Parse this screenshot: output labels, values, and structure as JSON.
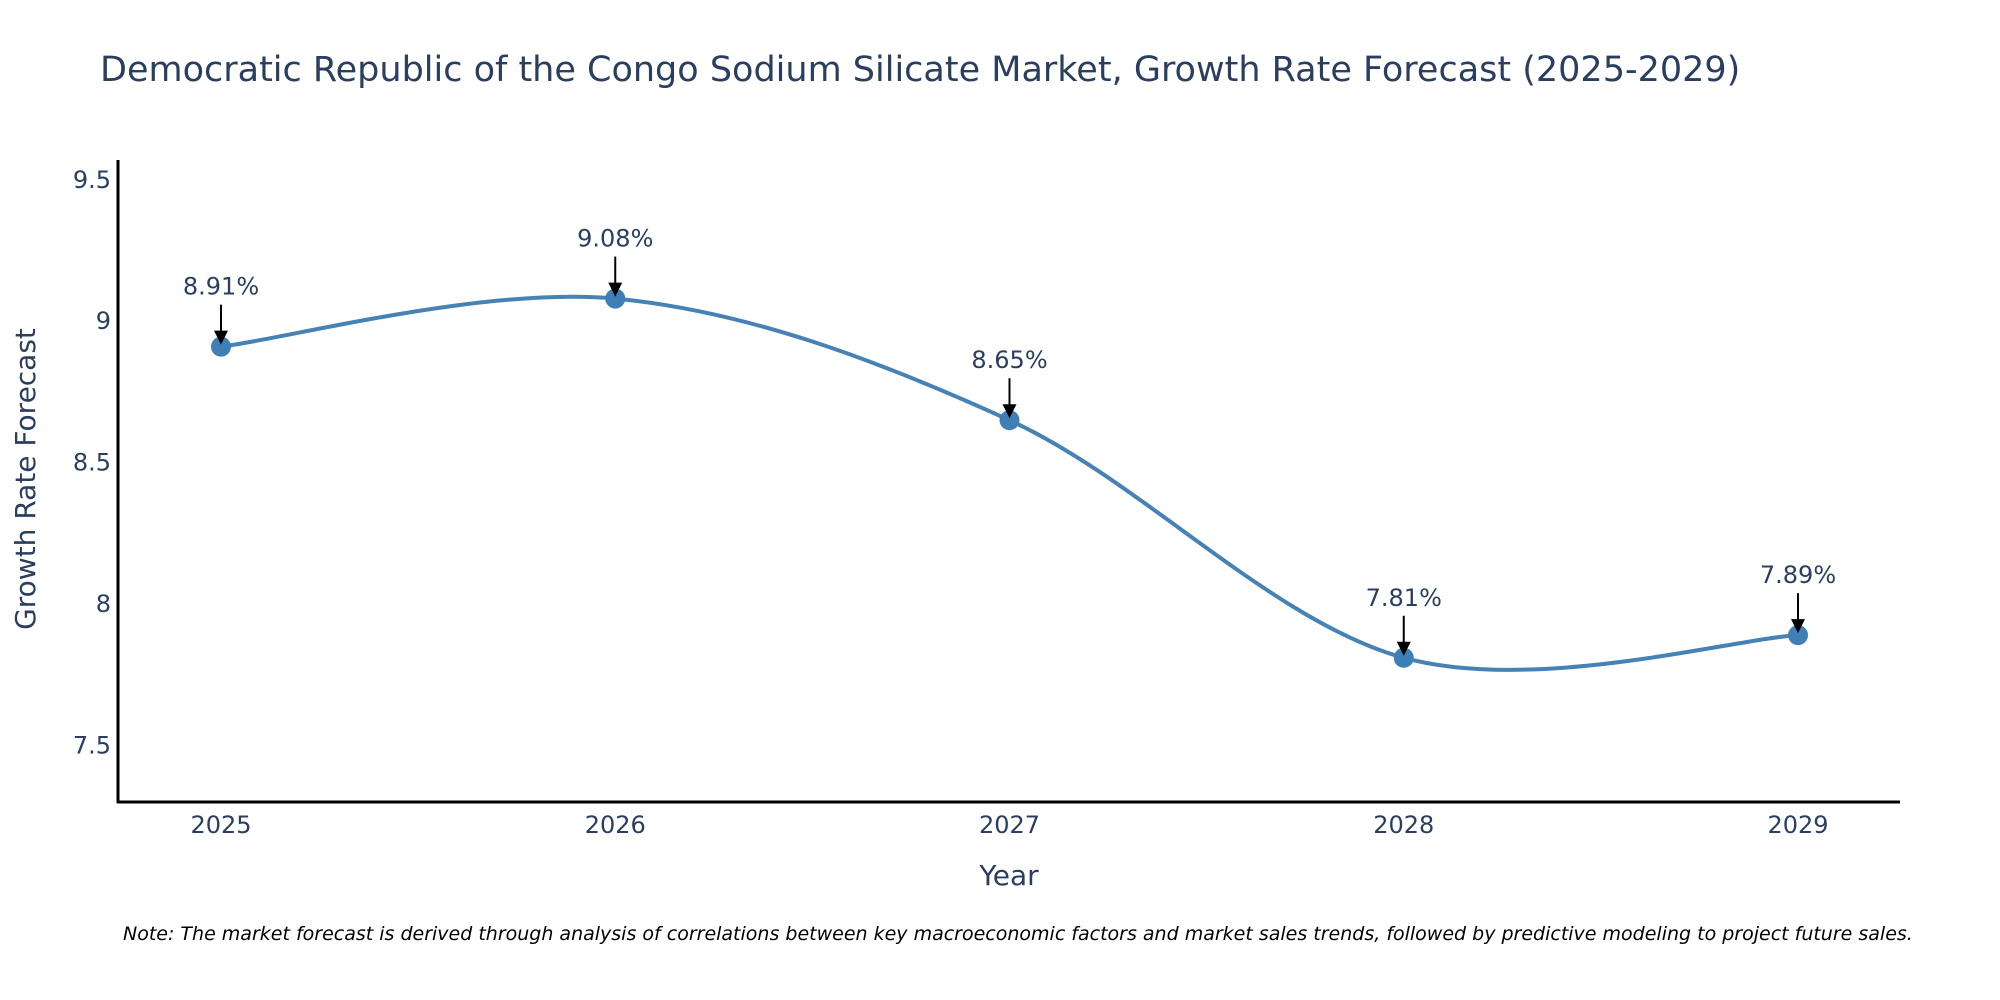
{
  "chart_data": {
    "type": "line",
    "title": "Democratic Republic of the Congo Sodium Silicate Market, Growth Rate Forecast (2025-2029)",
    "xlabel": "Year",
    "ylabel": "Growth Rate Forecast",
    "categories": [
      "2025",
      "2026",
      "2027",
      "2028",
      "2029"
    ],
    "series": [
      {
        "name": "Growth Rate Forecast",
        "values": [
          8.91,
          9.08,
          8.65,
          7.81,
          7.89
        ],
        "labels": [
          "8.91%",
          "9.08%",
          "8.65%",
          "7.81%",
          "7.89%"
        ]
      }
    ],
    "ylim": [
      7.3,
      9.57
    ],
    "yticks": [
      7.5,
      8,
      8.5,
      9,
      9.5
    ],
    "ytick_labels": [
      "7.5",
      "8",
      "8.5",
      "9",
      "9.5"
    ],
    "line_color": "#4682b4",
    "marker_color": "#3f7fb6",
    "grid": false,
    "smooth": true
  },
  "note": "Note: The market forecast is derived through analysis of correlations between key macroeconomic factors and market sales trends, followed by predictive modeling to project future sales."
}
